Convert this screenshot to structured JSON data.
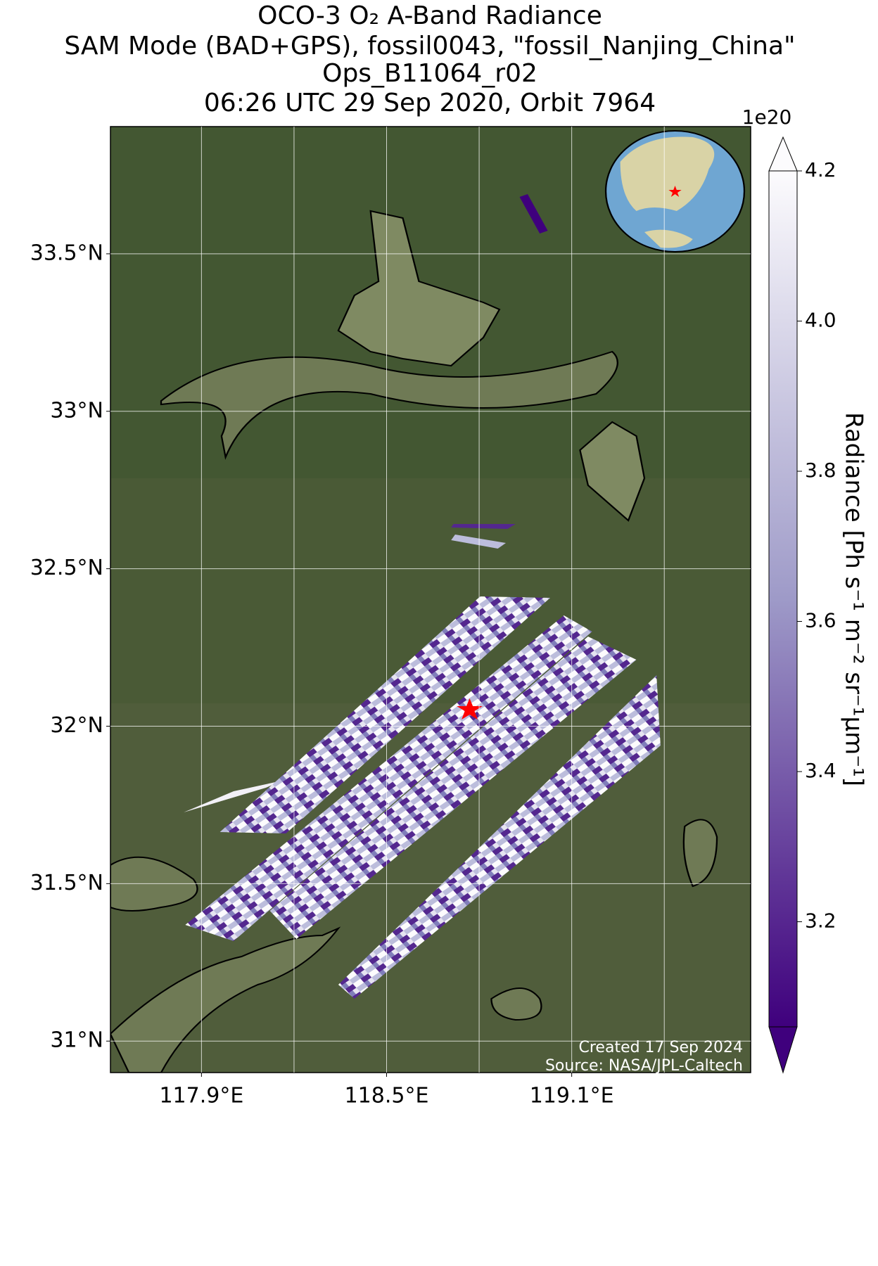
{
  "title": [
    "OCO-3 O₂ A-Band Radiance",
    "SAM Mode (BAD+GPS), fossil0043, \"fossil_Nanjing_China\"",
    "Ops_B11064_r02",
    "06:26 UTC 29 Sep 2020, Orbit 7964"
  ],
  "map": {
    "xlim": [
      117.605,
      119.68
    ],
    "ylim": [
      30.9,
      33.904
    ],
    "xticks": [
      {
        "value": 117.9,
        "label": "117.9°E"
      },
      {
        "value": 118.5,
        "label": "118.5°E"
      },
      {
        "value": 119.1,
        "label": "119.1°E"
      }
    ],
    "xgrid": [
      118.2,
      118.8,
      119.4
    ],
    "yticks": [
      {
        "value": 31,
        "label": "31°N"
      },
      {
        "value": 31.5,
        "label": "31.5°N"
      },
      {
        "value": 32,
        "label": "32°N"
      },
      {
        "value": 32.5,
        "label": "32.5°N"
      },
      {
        "value": 33,
        "label": "33°N"
      },
      {
        "value": 33.5,
        "label": "33.5°N"
      }
    ],
    "grid": true
  },
  "colorbar": {
    "label": "Radiance [Ph s⁻¹ m⁻² sr⁻¹μm⁻¹]",
    "scale_label": "1e20",
    "lim": [
      3.06,
      4.2
    ],
    "ticks": [
      3.2,
      3.4,
      3.6,
      3.8,
      {
        "value": 4,
        "label": "4.0"
      },
      4.2
    ],
    "colors": [
      "#3f007d",
      "#fcfbfd"
    ]
  },
  "credits": [
    "Created 17 Sep 2024",
    "Source: NASA/JPL-Caltech"
  ]
}
